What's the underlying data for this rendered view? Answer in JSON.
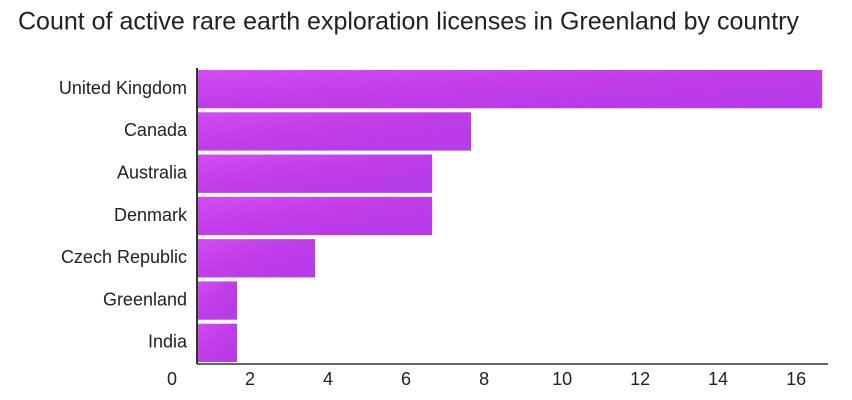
{
  "chart_data": {
    "type": "bar",
    "orientation": "horizontal",
    "title": "Count of active rare earth exploration licenses in Greenland by country",
    "categories": [
      "United Kingdom",
      "Canada",
      "Australia",
      "Denmark",
      "Czech Republic",
      "Greenland",
      "India"
    ],
    "values": [
      16,
      7,
      6,
      6,
      3,
      1,
      1
    ],
    "color": "#c23ff0",
    "xlim": [
      0,
      16.15
    ],
    "xticks": [
      0,
      2,
      4,
      6,
      8,
      10,
      12,
      14,
      16
    ],
    "grid": false
  }
}
